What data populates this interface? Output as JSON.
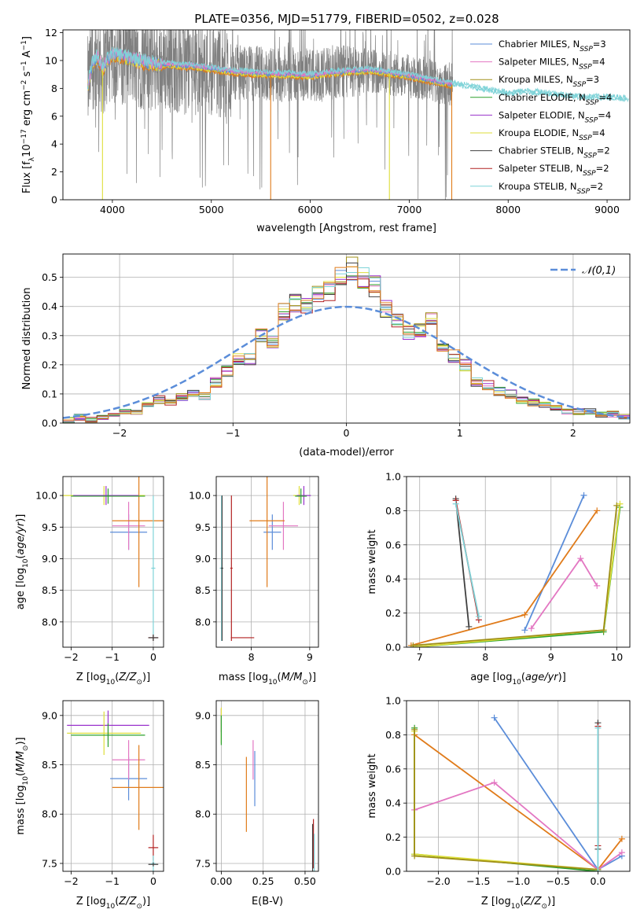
{
  "figure": {
    "title": "PLATE=0356, MJD=51779, FIBERID=0502, z=0.028"
  },
  "colors": {
    "series": [
      "#5b8dd9",
      "#e377c2",
      "#a09018",
      "#2ca02c",
      "#9932cc",
      "#dede3a",
      "#404040",
      "#b22222",
      "#7fd3d8"
    ],
    "data": "#808080",
    "orange": "#e07b1a",
    "normal": "#5b8dd9"
  },
  "legend": {
    "entries": [
      "Chabrier MILES, N_SSP=3",
      "Salpeter MILES, N_SSP=4",
      "Kroupa MILES, N_SSP=3",
      "Chabrier ELODIE, N_SSP=4",
      "Salpeter ELODIE, N_SSP=4",
      "Kroupa ELODIE, N_SSP=4",
      "Chabrier STELIB, N_SSP=2",
      "Salpeter STELIB, N_SSP=2",
      "Kroupa STELIB, N_SSP=2"
    ]
  },
  "chart_data": [
    {
      "id": "spectrum",
      "type": "line",
      "title": "PLATE=0356, MJD=51779, FIBERID=0502, z=0.028",
      "xlabel": "wavelength [Angstrom, rest frame]",
      "ylabel": "Flux [f_λ 10^-17 erg cm^-2 s^-1 A^-1]",
      "xlim": [
        3500,
        9230
      ],
      "ylim": [
        0,
        12.2
      ],
      "xticks": [
        4000,
        5000,
        6000,
        7000,
        8000,
        9000
      ],
      "yticks": [
        0,
        2,
        4,
        6,
        8,
        10,
        12
      ],
      "grid": false,
      "legend_position": "top-right",
      "model_continuum": {
        "x": [
          3750,
          3800,
          3850,
          3900,
          3950,
          4000,
          4100,
          4200,
          4300,
          4400,
          4500,
          4600,
          4700,
          4800,
          4900,
          5000,
          5200,
          5400,
          5600,
          5800,
          6000,
          6200,
          6400,
          6600,
          6800,
          7000,
          7200,
          7400,
          7600,
          7800,
          8000,
          8200,
          8400,
          8600,
          8800,
          9000,
          9200
        ],
        "y": [
          8.2,
          9.8,
          10.3,
          9.4,
          10.0,
          10.4,
          10.3,
          10.1,
          9.9,
          9.8,
          9.7,
          9.7,
          9.6,
          9.6,
          9.5,
          9.4,
          9.2,
          9.1,
          9.0,
          9.0,
          8.9,
          9.1,
          9.2,
          9.3,
          9.1,
          8.9,
          8.6,
          8.3,
          8.1,
          7.8,
          7.6,
          7.7,
          7.6,
          7.4,
          7.3,
          7.3,
          7.2
        ]
      }
    },
    {
      "id": "residuals",
      "type": "line",
      "xlabel": "(data-model)/error",
      "ylabel": "Normed distribution",
      "xlim": [
        -2.5,
        2.5
      ],
      "ylim": [
        0,
        0.58
      ],
      "xticks": [
        -2,
        -1,
        0,
        1,
        2
      ],
      "yticks": [
        0.0,
        0.1,
        0.2,
        0.3,
        0.4,
        0.5
      ],
      "grid": true,
      "legend_position": "top-right",
      "legend_label": "𝒩(0,1)",
      "hist_edges": [
        -2.5,
        -2.4,
        -2.3,
        -2.2,
        -2.1,
        -2.0,
        -1.9,
        -1.8,
        -1.7,
        -1.6,
        -1.5,
        -1.4,
        -1.3,
        -1.2,
        -1.1,
        -1.0,
        -0.9,
        -0.8,
        -0.7,
        -0.6,
        -0.5,
        -0.4,
        -0.3,
        -0.2,
        -0.1,
        0.0,
        0.1,
        0.2,
        0.3,
        0.4,
        0.5,
        0.6,
        0.7,
        0.8,
        0.9,
        1.0,
        1.1,
        1.2,
        1.3,
        1.4,
        1.5,
        1.6,
        1.7,
        1.8,
        1.9,
        2.0,
        2.1,
        2.2,
        2.3,
        2.4,
        2.5
      ],
      "hist_heights": [
        0.01,
        0.02,
        0.01,
        0.02,
        0.03,
        0.04,
        0.04,
        0.06,
        0.08,
        0.07,
        0.09,
        0.1,
        0.09,
        0.14,
        0.18,
        0.22,
        0.22,
        0.3,
        0.28,
        0.38,
        0.41,
        0.4,
        0.44,
        0.45,
        0.5,
        0.53,
        0.5,
        0.47,
        0.39,
        0.36,
        0.31,
        0.32,
        0.37,
        0.25,
        0.23,
        0.2,
        0.14,
        0.13,
        0.11,
        0.1,
        0.08,
        0.07,
        0.06,
        0.05,
        0.04,
        0.04,
        0.04,
        0.03,
        0.03,
        0.02
      ]
    },
    {
      "id": "age-vs-z",
      "type": "scatter",
      "xlabel": "Z [log10(Z/Z⊙)]",
      "ylabel": "age [log10(age/yr)]",
      "xlim": [
        -2.2,
        0.25
      ],
      "ylim": [
        7.6,
        10.3
      ],
      "xticks": [
        -2,
        -1,
        0
      ],
      "yticks": [
        8.0,
        8.5,
        9.0,
        9.5,
        10.0
      ],
      "grid": true,
      "points": [
        {
          "s": 0,
          "x": -0.6,
          "y": 9.42,
          "xerr": 0.45,
          "yerr": 0.28
        },
        {
          "s": 1,
          "x": -0.6,
          "y": 9.52,
          "xerr": 0.4,
          "yerr": 0.38
        },
        {
          "s": 9,
          "x": -0.35,
          "y": 9.6,
          "xerr": 0.65,
          "yerr": 1.05
        },
        {
          "s": 5,
          "x": -1.2,
          "y": 10.0,
          "xerr": 1.0,
          "yerr": 0.15
        },
        {
          "s": 4,
          "x": -1.15,
          "y": 10.0,
          "xerr": 0.8,
          "yerr": 0.15
        },
        {
          "s": 3,
          "x": -1.1,
          "y": 9.99,
          "xerr": 0.9,
          "yerr": 0.12
        },
        {
          "s": 8,
          "x": 0.0,
          "y": 8.85,
          "xerr": 0.05,
          "yerr": 1.15
        },
        {
          "s": 7,
          "x": 0.0,
          "y": 7.75,
          "xerr": 0.12,
          "yerr": 0.05
        },
        {
          "s": 6,
          "x": 0.0,
          "y": 7.75,
          "xerr": 0.12,
          "yerr": 0.05
        }
      ]
    },
    {
      "id": "age-vs-mass",
      "type": "scatter",
      "xlabel": "mass [log10(M/M⊙)]",
      "ylabel": "",
      "xlim": [
        7.4,
        9.15
      ],
      "ylim": [
        7.6,
        10.3
      ],
      "xticks": [
        8,
        9
      ],
      "yticks": [
        8.0,
        8.5,
        9.0,
        9.5,
        10.0
      ],
      "grid": true,
      "points": [
        {
          "s": 0,
          "x": 8.36,
          "y": 9.42,
          "xerr": 0.15,
          "yerr": 0.28
        },
        {
          "s": 1,
          "x": 8.55,
          "y": 9.52,
          "xerr": 0.25,
          "yerr": 0.38
        },
        {
          "s": 9,
          "x": 8.27,
          "y": 9.6,
          "xerr": 0.3,
          "yerr": 1.05
        },
        {
          "s": 5,
          "x": 8.82,
          "y": 10.0,
          "xerr": 0.1,
          "yerr": 0.15
        },
        {
          "s": 4,
          "x": 8.9,
          "y": 10.0,
          "xerr": 0.12,
          "yerr": 0.15
        },
        {
          "s": 3,
          "x": 8.85,
          "y": 9.99,
          "xerr": 0.1,
          "yerr": 0.12
        },
        {
          "s": 8,
          "x": 7.49,
          "y": 8.85,
          "xerr": 0.03,
          "yerr": 1.15
        },
        {
          "s": 7,
          "x": 7.66,
          "y": 8.85,
          "xerr": 0.02,
          "yerr": 1.15
        },
        {
          "s": 6,
          "x": 7.5,
          "y": 8.85,
          "xerr": 0.02,
          "yerr": 1.15
        },
        {
          "s": 7,
          "x": 7.85,
          "y": 7.75,
          "xerr": 0.2,
          "yerr": 0.0
        }
      ]
    },
    {
      "id": "weight-vs-age",
      "type": "line",
      "xlabel": "age [log10(age/yr)]",
      "ylabel": "mass weight",
      "xlim": [
        6.8,
        10.2
      ],
      "ylim": [
        0,
        1.0
      ],
      "xticks": [
        7,
        8,
        9,
        10
      ],
      "yticks": [
        0.0,
        0.2,
        0.4,
        0.6,
        0.8,
        1.0
      ],
      "grid": true,
      "series": [
        {
          "s": 0,
          "x": [
            8.6,
            9.5
          ],
          "y": [
            0.1,
            0.89
          ]
        },
        {
          "s": 9,
          "x": [
            6.87,
            8.6,
            9.7
          ],
          "y": [
            0.01,
            0.19,
            0.8
          ]
        },
        {
          "s": 1,
          "x": [
            8.7,
            9.45,
            9.7
          ],
          "y": [
            0.11,
            0.52,
            0.36
          ]
        },
        {
          "s": 3,
          "x": [
            6.9,
            9.8,
            10.05
          ],
          "y": [
            0.0,
            0.09,
            0.82
          ]
        },
        {
          "s": 5,
          "x": [
            6.9,
            9.8,
            10.05
          ],
          "y": [
            0.0,
            0.1,
            0.84
          ]
        },
        {
          "s": 2,
          "x": [
            6.9,
            9.8,
            10.0
          ],
          "y": [
            0.01,
            0.1,
            0.83
          ]
        },
        {
          "s": 6,
          "x": [
            7.55,
            7.75
          ],
          "y": [
            0.87,
            0.12
          ]
        },
        {
          "s": 7,
          "x": [
            7.55,
            7.9
          ],
          "y": [
            0.86,
            0.16
          ]
        },
        {
          "s": 8,
          "x": [
            7.55,
            7.9
          ],
          "y": [
            0.84,
            0.18
          ]
        }
      ]
    },
    {
      "id": "mass-vs-z",
      "type": "scatter",
      "xlabel": "Z [log10(Z/Z⊙)]",
      "ylabel": "mass [log10(M/M⊙)]",
      "xlim": [
        -2.2,
        0.25
      ],
      "ylim": [
        7.42,
        9.15
      ],
      "xticks": [
        -2,
        -1,
        0
      ],
      "yticks": [
        7.5,
        8.0,
        8.5,
        9.0
      ],
      "grid": true,
      "points": [
        {
          "s": 0,
          "x": -0.6,
          "y": 8.36,
          "xerr": 0.45,
          "yerr": 0.22
        },
        {
          "s": 1,
          "x": -0.6,
          "y": 8.55,
          "xerr": 0.4,
          "yerr": 0.2
        },
        {
          "s": 9,
          "x": -0.35,
          "y": 8.27,
          "xerr": 0.65,
          "yerr": 0.43
        },
        {
          "s": 4,
          "x": -1.1,
          "y": 8.9,
          "xerr": 1.0,
          "yerr": 0.15
        },
        {
          "s": 5,
          "x": -1.2,
          "y": 8.82,
          "xerr": 0.9,
          "yerr": 0.22
        },
        {
          "s": 3,
          "x": -1.1,
          "y": 8.8,
          "xerr": 0.9,
          "yerr": 0.12
        },
        {
          "s": 7,
          "x": 0.0,
          "y": 7.66,
          "xerr": 0.12,
          "yerr": 0.13
        },
        {
          "s": 8,
          "x": 0.0,
          "y": 7.5,
          "xerr": 0.05,
          "yerr": 0.08
        },
        {
          "s": 6,
          "x": 0.0,
          "y": 7.49,
          "xerr": 0.12,
          "yerr": 0.02
        }
      ]
    },
    {
      "id": "mass-vs-ebv",
      "type": "scatter",
      "xlabel": "E(B-V)",
      "ylabel": "",
      "xlim": [
        -0.03,
        0.58
      ],
      "ylim": [
        7.42,
        9.15
      ],
      "xticks": [
        0.0,
        0.25,
        0.5
      ],
      "yticks": [
        7.5,
        8.0,
        8.5,
        9.0
      ],
      "grid": true,
      "points": [
        {
          "s": 0,
          "x": 0.2,
          "y": 8.36,
          "xerr": 0.0,
          "yerr": 0.28
        },
        {
          "s": 1,
          "x": 0.19,
          "y": 8.55,
          "xerr": 0.0,
          "yerr": 0.2
        },
        {
          "s": 9,
          "x": 0.15,
          "y": 8.2,
          "xerr": 0.0,
          "yerr": 0.38
        },
        {
          "s": 4,
          "x": 0.0,
          "y": 8.95,
          "xerr": 0.0,
          "yerr": 0.12
        },
        {
          "s": 5,
          "x": 0.0,
          "y": 8.9,
          "xerr": 0.0,
          "yerr": 0.18
        },
        {
          "s": 3,
          "x": 0.0,
          "y": 8.85,
          "xerr": 0.0,
          "yerr": 0.15
        },
        {
          "s": 7,
          "x": 0.55,
          "y": 7.7,
          "xerr": 0.0,
          "yerr": 0.25
        },
        {
          "s": 8,
          "x": 0.555,
          "y": 7.55,
          "xerr": 0.0,
          "yerr": 0.25
        },
        {
          "s": 6,
          "x": 0.545,
          "y": 7.6,
          "xerr": 0.0,
          "yerr": 0.3
        }
      ]
    },
    {
      "id": "weight-vs-z",
      "type": "line",
      "xlabel": "Z [log10(Z/Z⊙)]",
      "ylabel": "mass weight",
      "xlim": [
        -2.4,
        0.4
      ],
      "ylim": [
        0,
        1.0
      ],
      "xticks": [
        -2.0,
        -1.5,
        -1.0,
        -0.5,
        0.0
      ],
      "yticks": [
        0.0,
        0.2,
        0.4,
        0.6,
        0.8,
        1.0
      ],
      "grid": true,
      "series": [
        {
          "s": 0,
          "x": [
            -1.3,
            0.0,
            0.3
          ],
          "y": [
            0.9,
            0.01,
            0.09
          ]
        },
        {
          "s": 9,
          "x": [
            -2.3,
            0.0,
            0.3
          ],
          "y": [
            0.8,
            0.01,
            0.19
          ]
        },
        {
          "s": 1,
          "x": [
            -2.3,
            -1.3,
            0.0,
            0.3
          ],
          "y": [
            0.36,
            0.52,
            0.01,
            0.11
          ]
        },
        {
          "s": 3,
          "x": [
            -2.3,
            -2.3,
            0.0
          ],
          "y": [
            0.84,
            0.1,
            0.0
          ]
        },
        {
          "s": 5,
          "x": [
            -2.3,
            -2.3,
            0.0
          ],
          "y": [
            0.82,
            0.1,
            0.01
          ]
        },
        {
          "s": 2,
          "x": [
            -2.3,
            -2.3,
            0.0
          ],
          "y": [
            0.83,
            0.09,
            0.01
          ]
        },
        {
          "s": 6,
          "x": [
            0.0,
            0.0
          ],
          "y": [
            0.87,
            0.13
          ]
        },
        {
          "s": 7,
          "x": [
            0.0,
            0.0
          ],
          "y": [
            0.85,
            0.15
          ]
        },
        {
          "s": 8,
          "x": [
            0.0,
            0.0
          ],
          "y": [
            0.84,
            0.0
          ]
        }
      ]
    }
  ]
}
